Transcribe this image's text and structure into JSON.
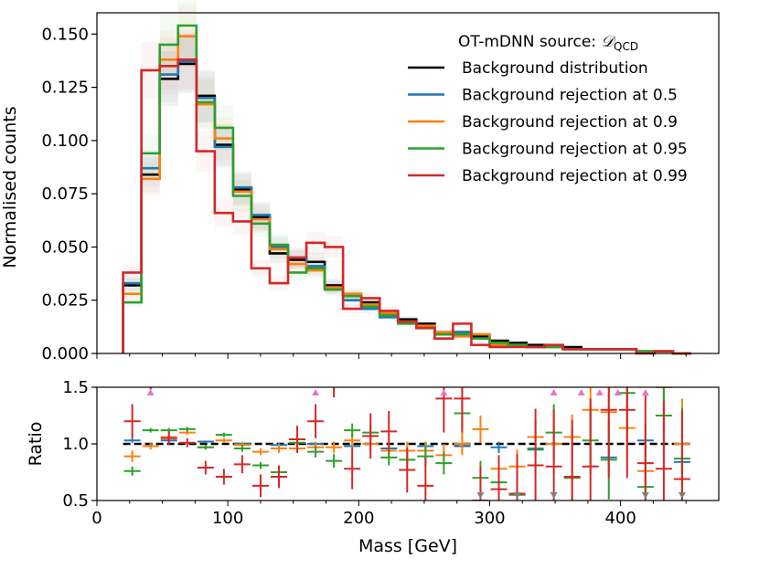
{
  "chart_data": [
    {
      "type": "line",
      "subtype": "step-histogram-with-uncertainty-bands",
      "title": "",
      "xlabel": "Mass [GeV]",
      "ylabel": "Normalised counts",
      "xlim": [
        0,
        475
      ],
      "ylim": [
        0,
        0.16
      ],
      "xticks": [
        0,
        100,
        200,
        300,
        400
      ],
      "yticks": [
        0.0,
        0.025,
        0.05,
        0.075,
        0.1,
        0.125,
        0.15
      ],
      "ytick_labels": [
        "0.000",
        "0.025",
        "0.050",
        "0.075",
        "0.100",
        "0.125",
        "0.150"
      ],
      "legend_title": "OT-mDNN source: ",
      "legend_title_math": "𝒟",
      "legend_title_sub": "QCD",
      "legend_position": "top-right",
      "bin_edges": [
        20,
        34,
        48,
        62,
        76,
        90,
        104,
        118,
        132,
        146,
        160,
        174,
        188,
        202,
        216,
        230,
        244,
        258,
        272,
        286,
        300,
        314,
        328,
        342,
        356,
        370,
        384,
        398,
        412,
        426,
        440,
        454
      ],
      "series": [
        {
          "name": "Background distribution",
          "color": "#000000",
          "values": [
            0.032,
            0.084,
            0.129,
            0.136,
            0.121,
            0.098,
            0.077,
            0.064,
            0.047,
            0.044,
            0.043,
            0.032,
            0.027,
            0.024,
            0.019,
            0.016,
            0.014,
            0.01,
            0.01,
            0.008,
            0.006,
            0.005,
            0.004,
            0.003,
            0.003,
            0.002,
            0.002,
            0.002,
            0.001,
            0.001,
            0.0
          ]
        },
        {
          "name": "Background rejection at 0.5",
          "color": "#1f77b4",
          "values": [
            0.033,
            0.087,
            0.131,
            0.137,
            0.12,
            0.097,
            0.078,
            0.065,
            0.05,
            0.045,
            0.041,
            0.031,
            0.025,
            0.021,
            0.017,
            0.015,
            0.012,
            0.009,
            0.01,
            0.007,
            0.005,
            0.004,
            0.003,
            0.003,
            0.002,
            0.002,
            0.002,
            0.002,
            0.001,
            0.001,
            0.0
          ]
        },
        {
          "name": "Background rejection at 0.9",
          "color": "#ff7f0e",
          "values": [
            0.028,
            0.082,
            0.138,
            0.149,
            0.117,
            0.101,
            0.076,
            0.063,
            0.049,
            0.042,
            0.039,
            0.031,
            0.028,
            0.023,
            0.019,
            0.015,
            0.013,
            0.01,
            0.008,
            0.009,
            0.004,
            0.004,
            0.003,
            0.003,
            0.002,
            0.002,
            0.002,
            0.002,
            0.001,
            0.001,
            0.0
          ]
        },
        {
          "name": "Background rejection at 0.95",
          "color": "#2ca02c",
          "values": [
            0.024,
            0.094,
            0.145,
            0.154,
            0.118,
            0.106,
            0.074,
            0.061,
            0.051,
            0.038,
            0.04,
            0.03,
            0.027,
            0.022,
            0.018,
            0.014,
            0.012,
            0.009,
            0.009,
            0.007,
            0.005,
            0.004,
            0.003,
            0.003,
            0.002,
            0.002,
            0.002,
            0.002,
            0.001,
            0.001,
            0.0
          ]
        },
        {
          "name": "Background rejection at 0.99",
          "color": "#d62728",
          "values": [
            0.038,
            0.133,
            0.135,
            0.138,
            0.095,
            0.066,
            0.062,
            0.04,
            0.033,
            0.045,
            0.052,
            0.05,
            0.021,
            0.026,
            0.02,
            0.015,
            0.012,
            0.007,
            0.014,
            0.004,
            0.003,
            0.003,
            0.003,
            0.004,
            0.002,
            0.002,
            0.002,
            0.002,
            0.0,
            0.001,
            0.0
          ]
        }
      ],
      "band_halfwidth_fraction": 0.1
    },
    {
      "type": "scatter",
      "subtype": "ratio-with-error-bars",
      "xlabel": "Mass [GeV]",
      "ylabel": "Ratio",
      "xlim": [
        0,
        475
      ],
      "ylim": [
        0.5,
        1.5
      ],
      "xticks": [
        0,
        100,
        200,
        300,
        400
      ],
      "xtick_labels": [
        "0",
        "100",
        "200",
        "300",
        "400"
      ],
      "yticks": [
        0.5,
        1.0,
        1.5
      ],
      "ytick_labels": [
        "0.5",
        "1.0",
        "1.5"
      ],
      "reference_line": {
        "y": 1.0,
        "style": "dashed",
        "color": "#000000"
      },
      "overflow_marker_color_up": "#e377c2",
      "overflow_marker_color_down": "#7f7f7f",
      "series": [
        {
          "name": "Background rejection at 0.5",
          "color": "#1f77b4",
          "x": [
            27,
            55,
            83,
            111,
            139,
            167,
            195,
            223,
            251,
            279,
            307,
            335,
            363,
            391,
            419,
            447
          ],
          "y": [
            1.03,
            1.03,
            1.02,
            1.0,
            0.99,
            1.0,
            0.98,
            0.96,
            0.98,
            0.98,
            0.97,
            0.95,
            1.06,
            0.88,
            1.03,
            0.84
          ],
          "err": [
            0.02,
            0.01,
            0.01,
            0.01,
            0.02,
            0.02,
            0.02,
            0.02,
            0.03,
            0.03,
            0.05,
            0.04,
            0.08,
            0.1,
            0.15,
            0.1
          ]
        },
        {
          "name": "Background rejection at 0.9",
          "color": "#ff7f0e",
          "x": [
            27,
            41,
            55,
            69,
            83,
            97,
            111,
            125,
            139,
            153,
            167,
            181,
            195,
            209,
            223,
            237,
            251,
            265,
            279,
            293,
            307,
            321,
            335,
            349,
            363,
            377,
            391,
            405,
            419,
            433,
            447
          ],
          "y": [
            0.89,
            0.98,
            1.06,
            1.1,
            0.97,
            1.03,
            0.99,
            0.93,
            0.96,
            0.96,
            0.97,
            0.97,
            1.03,
            1.0,
            0.94,
            0.94,
            0.94,
            0.9,
            1.0,
            1.13,
            0.78,
            0.8,
            1.06,
            1.0,
            1.06,
            1.3,
            1.28,
            1.14,
            0.76,
            1.5,
            1.0
          ],
          "err": [
            0.05,
            0.03,
            0.02,
            0.02,
            0.02,
            0.02,
            0.03,
            0.03,
            0.04,
            0.04,
            0.05,
            0.05,
            0.06,
            0.06,
            0.07,
            0.08,
            0.08,
            0.1,
            0.1,
            0.12,
            0.12,
            0.15,
            0.15,
            0.15,
            0.2,
            0.25,
            0.25,
            0.3,
            0.3,
            0.4,
            0.4
          ]
        },
        {
          "name": "Background rejection at 0.95",
          "color": "#2ca02c",
          "x": [
            27,
            41,
            55,
            69,
            83,
            97,
            111,
            125,
            139,
            153,
            167,
            181,
            195,
            209,
            223,
            237,
            251,
            265,
            279,
            293,
            307,
            321,
            335,
            349,
            363,
            377,
            391,
            405,
            419,
            433,
            447
          ],
          "y": [
            0.76,
            1.12,
            1.12,
            1.13,
            0.97,
            1.08,
            0.96,
            0.81,
            0.75,
            1.01,
            0.93,
            0.85,
            1.12,
            1.1,
            0.88,
            0.86,
            0.89,
            0.83,
            1.27,
            0.7,
            0.66,
            0.55,
            0.96,
            1.1,
            0.7,
            1.03,
            0.86,
            1.45,
            0.62,
            1.25,
            0.87
          ],
          "err": [
            0.04,
            0.02,
            0.02,
            0.02,
            0.02,
            0.02,
            0.03,
            0.03,
            0.04,
            0.05,
            0.05,
            0.06,
            0.06,
            0.07,
            0.07,
            0.08,
            0.09,
            0.1,
            0.15,
            0.15,
            0.15,
            0.2,
            0.25,
            0.25,
            0.3,
            0.3,
            0.35,
            0.4,
            0.4,
            0.45,
            0.45
          ]
        },
        {
          "name": "Background rejection at 0.99",
          "color": "#d62728",
          "x": [
            27,
            41,
            55,
            69,
            83,
            97,
            111,
            125,
            139,
            153,
            167,
            181,
            195,
            209,
            223,
            237,
            251,
            265,
            279,
            293,
            307,
            321,
            335,
            349,
            363,
            377,
            391,
            405,
            419,
            433,
            447
          ],
          "y": [
            1.2,
            1.58,
            1.05,
            1.01,
            0.79,
            0.71,
            0.82,
            0.63,
            0.71,
            1.04,
            1.2,
            1.56,
            0.78,
            1.07,
            1.11,
            0.77,
            0.63,
            1.4,
            1.4,
            0.5,
            0.6,
            0.56,
            0.81,
            0.8,
            0.71,
            0.8,
            1.3,
            1.3,
            0.83,
            0.78,
            0.69
          ],
          "err": [
            0.15,
            0.1,
            0.06,
            0.04,
            0.06,
            0.07,
            0.08,
            0.1,
            0.1,
            0.12,
            0.15,
            0.15,
            0.18,
            0.2,
            0.18,
            0.2,
            0.25,
            0.3,
            0.3,
            0.3,
            0.3,
            0.35,
            0.5,
            0.5,
            0.5,
            0.6,
            0.6,
            0.6,
            0.6,
            0.6,
            0.6
          ]
        }
      ],
      "overflow_up_x": [
        41,
        167,
        265,
        349,
        370,
        384,
        398,
        419
      ],
      "overflow_down_x": [
        293,
        321,
        349,
        419,
        447
      ]
    }
  ]
}
